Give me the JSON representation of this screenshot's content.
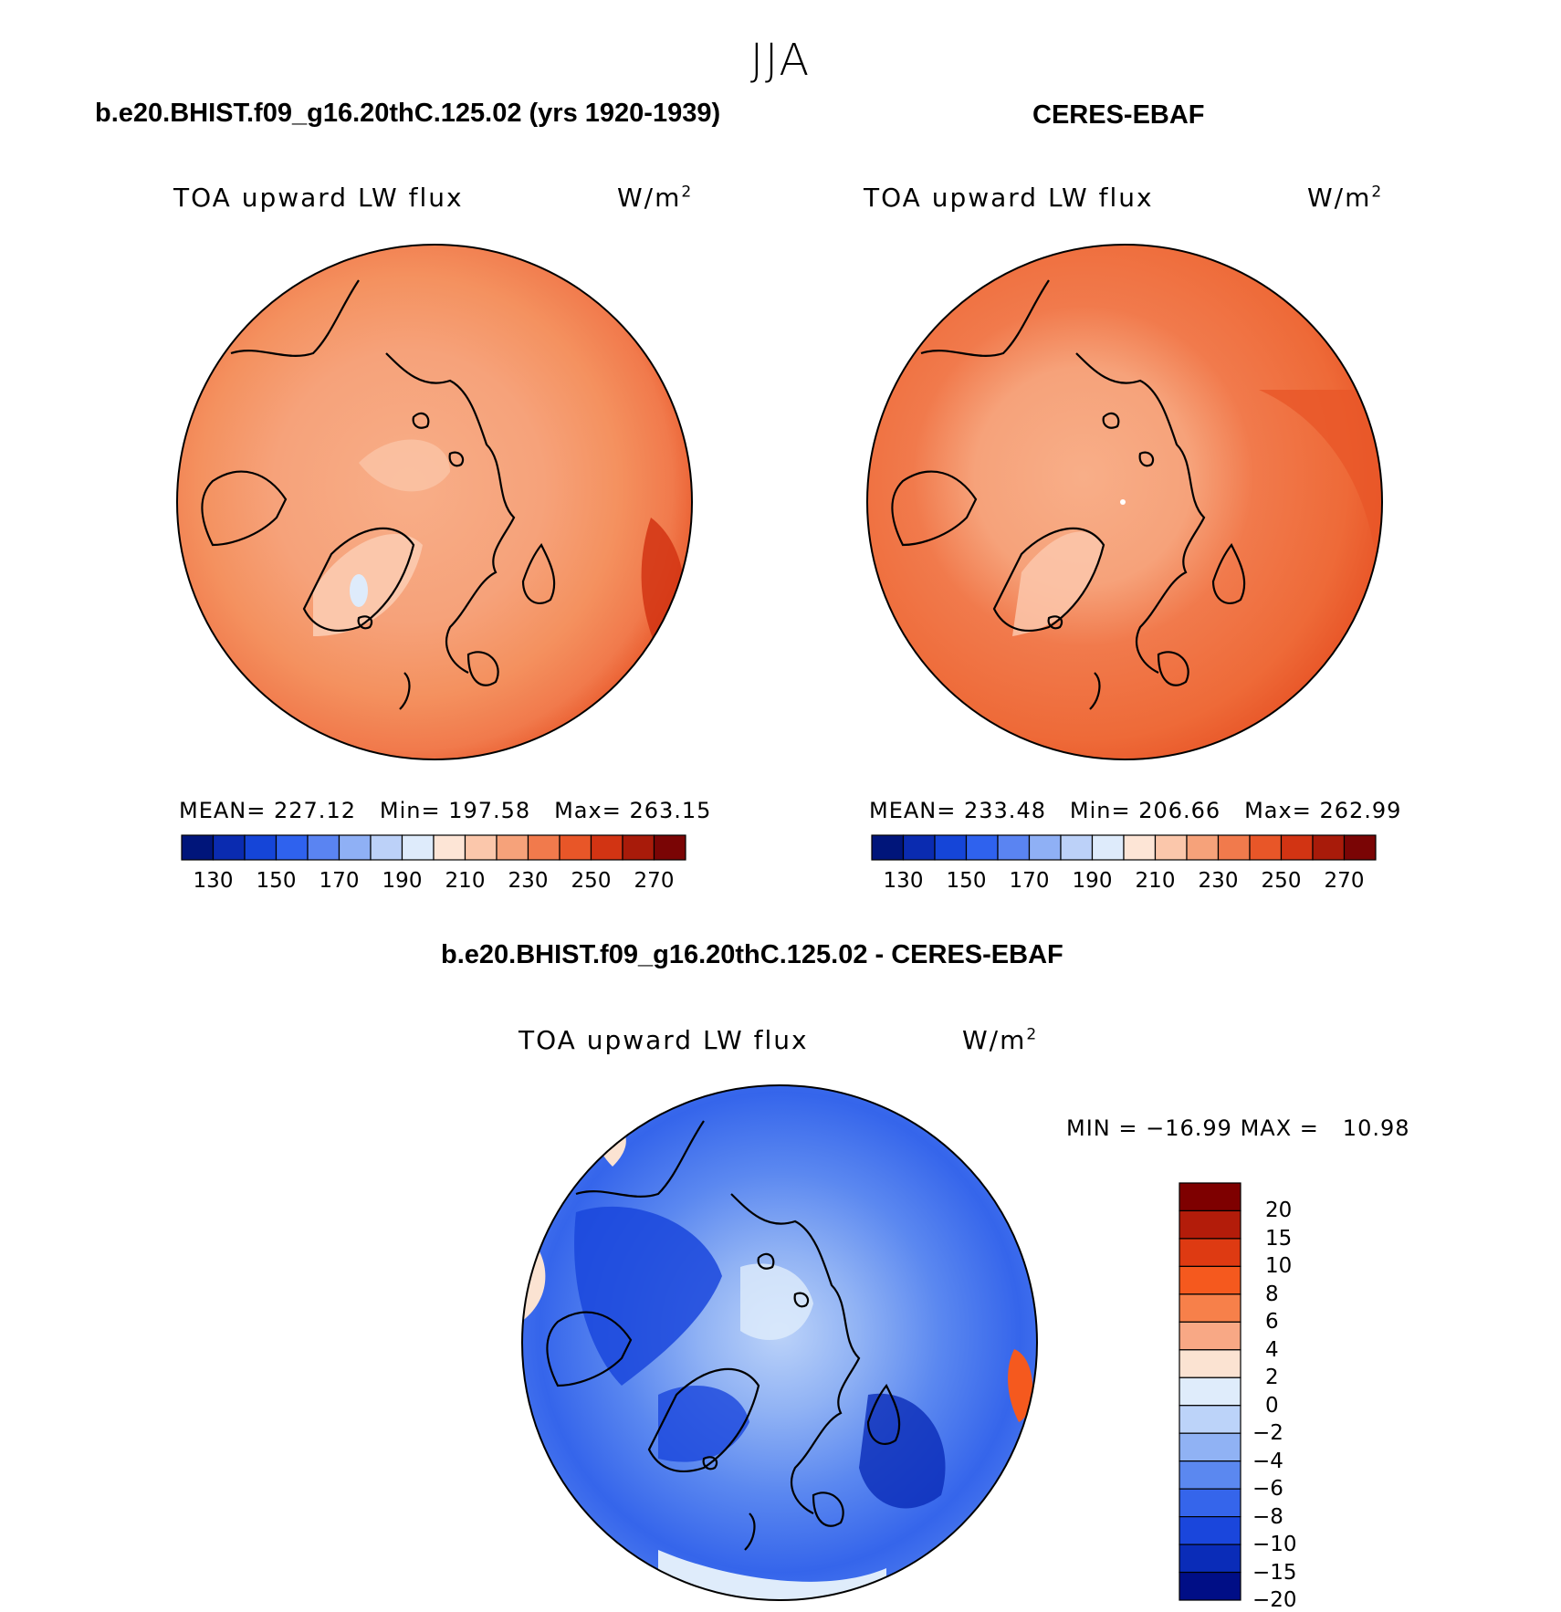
{
  "season": "JJA",
  "panels": [
    {
      "title": "b.e20.BHIST.f09_g16.20thC.125.02 (yrs 1920-1939)",
      "variable": "TOA upward LW flux",
      "units": "W/m",
      "units_exp": "2",
      "stats": {
        "mean_label": "MEAN=",
        "mean": "227.12",
        "min_label": "Min=",
        "min": "197.58",
        "max_label": "Max=",
        "max": "263.15"
      }
    },
    {
      "title": "CERES-EBAF",
      "variable": "TOA upward LW flux",
      "units": "W/m",
      "units_exp": "2",
      "stats": {
        "mean_label": "MEAN=",
        "mean": "233.48",
        "min_label": "Min=",
        "min": "206.66",
        "max_label": "Max=",
        "max": "262.99"
      }
    },
    {
      "title": "b.e20.BHIST.f09_g16.20thC.125.02 - CERES-EBAF",
      "variable": "TOA upward LW flux",
      "units": "W/m",
      "units_exp": "2",
      "stats": {
        "min_label": "MIN =",
        "min": "−16.99",
        "max_label": "MAX =",
        "max": "10.98"
      }
    }
  ],
  "colorbars": {
    "abs_colors": [
      "#00157a",
      "#0a2bb0",
      "#1545d8",
      "#2f62ee",
      "#5a84f2",
      "#8fb0f5",
      "#bcd1f8",
      "#deebfb",
      "#fde5d6",
      "#fbc7ab",
      "#f6a27a",
      "#f17a4c",
      "#e85628",
      "#d23413",
      "#a81b0a",
      "#7a0505"
    ],
    "abs_ticks": [
      "130",
      "150",
      "170",
      "190",
      "210",
      "230",
      "250",
      "270"
    ],
    "diff_colors": [
      "#7e0000",
      "#b31c0a",
      "#de3a12",
      "#f5591e",
      "#f7804a",
      "#f8a885",
      "#fbe3d2",
      "#dfecfb",
      "#bcd3f9",
      "#90b2f4",
      "#5b88f0",
      "#3565eb",
      "#1a46dc",
      "#0a2cb8",
      "#000e86"
    ],
    "diff_ticks": [
      "20",
      "15",
      "10",
      "8",
      "6",
      "4",
      "2",
      "0",
      "−2",
      "−4",
      "−6",
      "−8",
      "−10",
      "−15",
      "−20"
    ]
  },
  "chart_data": [
    {
      "type": "heatmap",
      "title": "b.e20.BHIST.f09_g16.20thC.125.02 (yrs 1920-1939)",
      "variable": "TOA upward LW flux",
      "units": "W/m2",
      "projection": "north polar stereographic",
      "mean": 227.12,
      "min": 197.58,
      "max": 263.15,
      "levels": [
        130,
        140,
        150,
        160,
        170,
        180,
        190,
        200,
        210,
        220,
        230,
        240,
        250,
        260,
        270
      ]
    },
    {
      "type": "heatmap",
      "title": "CERES-EBAF",
      "variable": "TOA upward LW flux",
      "units": "W/m2",
      "projection": "north polar stereographic",
      "mean": 233.48,
      "min": 206.66,
      "max": 262.99,
      "levels": [
        130,
        140,
        150,
        160,
        170,
        180,
        190,
        200,
        210,
        220,
        230,
        240,
        250,
        260,
        270
      ]
    },
    {
      "type": "heatmap",
      "title": "b.e20.BHIST.f09_g16.20thC.125.02 - CERES-EBAF",
      "variable": "TOA upward LW flux",
      "units": "W/m2",
      "projection": "north polar stereographic",
      "min": -16.99,
      "max": 10.98,
      "levels": [
        -20,
        -15,
        -10,
        -8,
        -6,
        -4,
        -2,
        0,
        2,
        4,
        6,
        8,
        10,
        15,
        20
      ]
    }
  ]
}
